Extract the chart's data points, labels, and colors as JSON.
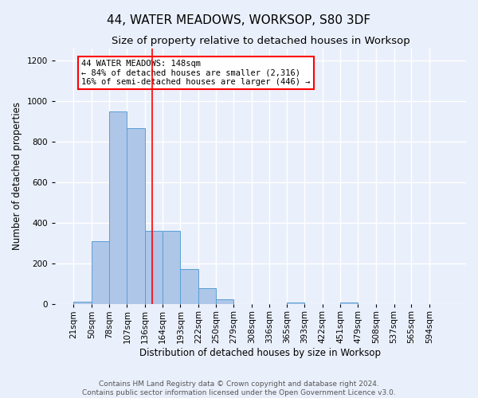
{
  "title": "44, WATER MEADOWS, WORKSOP, S80 3DF",
  "subtitle": "Size of property relative to detached houses in Worksop",
  "xlabel": "Distribution of detached houses by size in Worksop",
  "ylabel": "Number of detached properties",
  "footer_line1": "Contains HM Land Registry data © Crown copyright and database right 2024.",
  "footer_line2": "Contains public sector information licensed under the Open Government Licence v3.0.",
  "bin_labels": [
    "21sqm",
    "50sqm",
    "78sqm",
    "107sqm",
    "136sqm",
    "164sqm",
    "193sqm",
    "222sqm",
    "250sqm",
    "279sqm",
    "308sqm",
    "336sqm",
    "365sqm",
    "393sqm",
    "422sqm",
    "451sqm",
    "479sqm",
    "508sqm",
    "537sqm",
    "565sqm",
    "594sqm"
  ],
  "bar_values": [
    12,
    310,
    950,
    865,
    360,
    360,
    175,
    80,
    25,
    0,
    0,
    0,
    10,
    0,
    0,
    10,
    0,
    0,
    0,
    0,
    0
  ],
  "bar_color": "#aec6e8",
  "bar_edge_color": "#5a9fd4",
  "bin_edges": [
    21,
    50,
    78,
    107,
    136,
    164,
    193,
    222,
    250,
    279,
    308,
    336,
    365,
    393,
    422,
    451,
    479,
    508,
    537,
    565,
    594
  ],
  "red_line_x": 148,
  "annotation_text_line1": "44 WATER MEADOWS: 148sqm",
  "annotation_text_line2": "← 84% of detached houses are smaller (2,316)",
  "annotation_text_line3": "16% of semi-detached houses are larger (446) →",
  "ylim": [
    0,
    1260
  ],
  "yticks": [
    0,
    200,
    400,
    600,
    800,
    1000,
    1200
  ],
  "bg_color": "#eaf0fb",
  "plot_bg_color": "#eaf0fb",
  "grid_color": "#ffffff",
  "title_fontsize": 11,
  "subtitle_fontsize": 9.5,
  "axis_label_fontsize": 8.5,
  "tick_fontsize": 7.5,
  "footer_fontsize": 6.5,
  "annotation_fontsize": 7.5
}
